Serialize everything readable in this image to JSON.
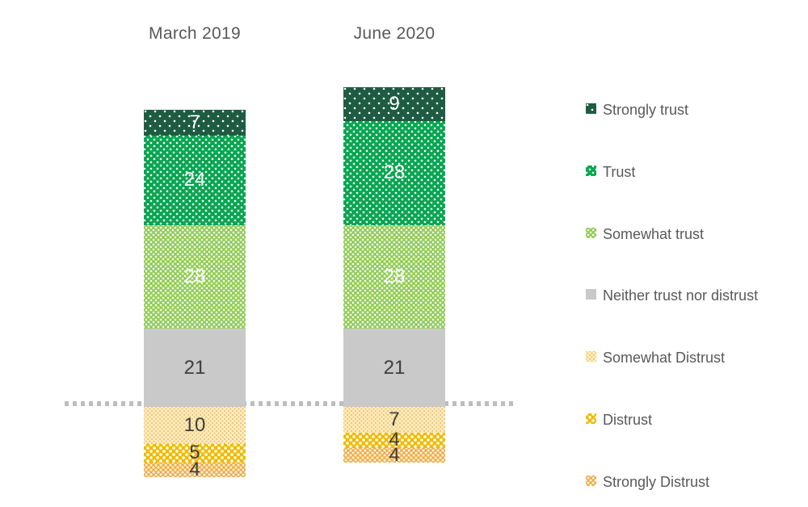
{
  "page": {
    "background": "#ffffff"
  },
  "chart_data": {
    "type": "bar",
    "stacked": true,
    "orientation": "vertical",
    "title": "",
    "categories": [
      "March 2019",
      "June 2020"
    ],
    "series": [
      {
        "name": "Strongly trust",
        "values": [
          7,
          9
        ],
        "color": "#1e5c42",
        "pattern": "dots-sparse",
        "label_color": "#ffffff"
      },
      {
        "name": "Trust",
        "values": [
          24,
          28
        ],
        "color": "#09a651",
        "pattern": "dots-medium",
        "label_color": "#ffffff"
      },
      {
        "name": "Somewhat trust",
        "values": [
          28,
          28
        ],
        "color": "#8ecc52",
        "pattern": "dots-dense",
        "label_color": "#ffffff"
      },
      {
        "name": "Neither trust nor distrust",
        "values": [
          21,
          21
        ],
        "color": "#c9c9c9",
        "pattern": "solid",
        "label_color": "#3f3f3f"
      },
      {
        "name": "Somewhat Distrust",
        "values": [
          10,
          7
        ],
        "color": "#fdeec6",
        "pattern": "grid-orange",
        "label_color": "#3f3f3f"
      },
      {
        "name": "Distrust",
        "values": [
          5,
          4
        ],
        "color": "#f1ba00",
        "pattern": "lattice-white",
        "label_color": "#3f3f3f"
      },
      {
        "name": "Strongly Distrust",
        "values": [
          4,
          4
        ],
        "color": "#f2a73d",
        "pattern": "checker-white",
        "label_color": "#3f3f3f"
      }
    ],
    "data_labels": "shown on each segment",
    "divider": {
      "after_series": "Neither trust nor distrust",
      "style": "dotted",
      "color": "#bdbdbd"
    },
    "legend_position": "right",
    "axes": "hidden",
    "text_color": "#595959"
  }
}
